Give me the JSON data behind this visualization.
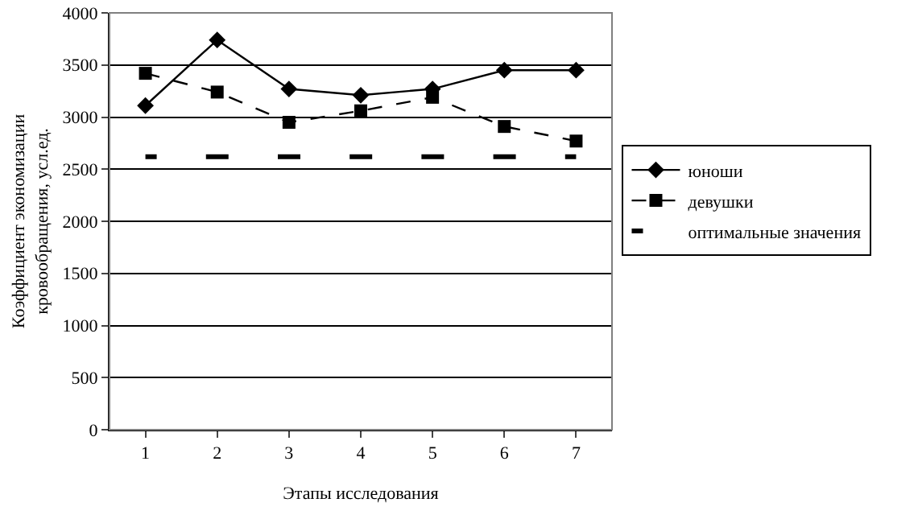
{
  "chart_data": {
    "type": "line",
    "xlabel": "Этапы исследования",
    "ylabel": "Коэффициент экономизации\nкровообращения, усл.ед.",
    "categories": [
      "1",
      "2",
      "3",
      "4",
      "5",
      "6",
      "7"
    ],
    "series": [
      {
        "name": "юноши",
        "color": "#000000",
        "values": [
          3110,
          3740,
          3270,
          3210,
          3270,
          3450,
          3450
        ],
        "marker": "diamond",
        "line_style": "solid"
      },
      {
        "name": "девушки",
        "color": "#000000",
        "values": [
          3420,
          3240,
          2950,
          3060,
          3190,
          2910,
          2770
        ],
        "marker": "square",
        "line_style": "dashed"
      },
      {
        "name": "оптимальные значения",
        "color": "#000000",
        "values": [
          2620,
          2620,
          2620,
          2620,
          2620,
          2620,
          2620
        ],
        "marker": "none",
        "line_style": "dashed"
      }
    ],
    "ylim": [
      0,
      4000
    ],
    "yticks": [
      0,
      500,
      1000,
      1500,
      2000,
      2500,
      3000,
      3500,
      4000
    ],
    "grid": "y",
    "legend": "right"
  }
}
